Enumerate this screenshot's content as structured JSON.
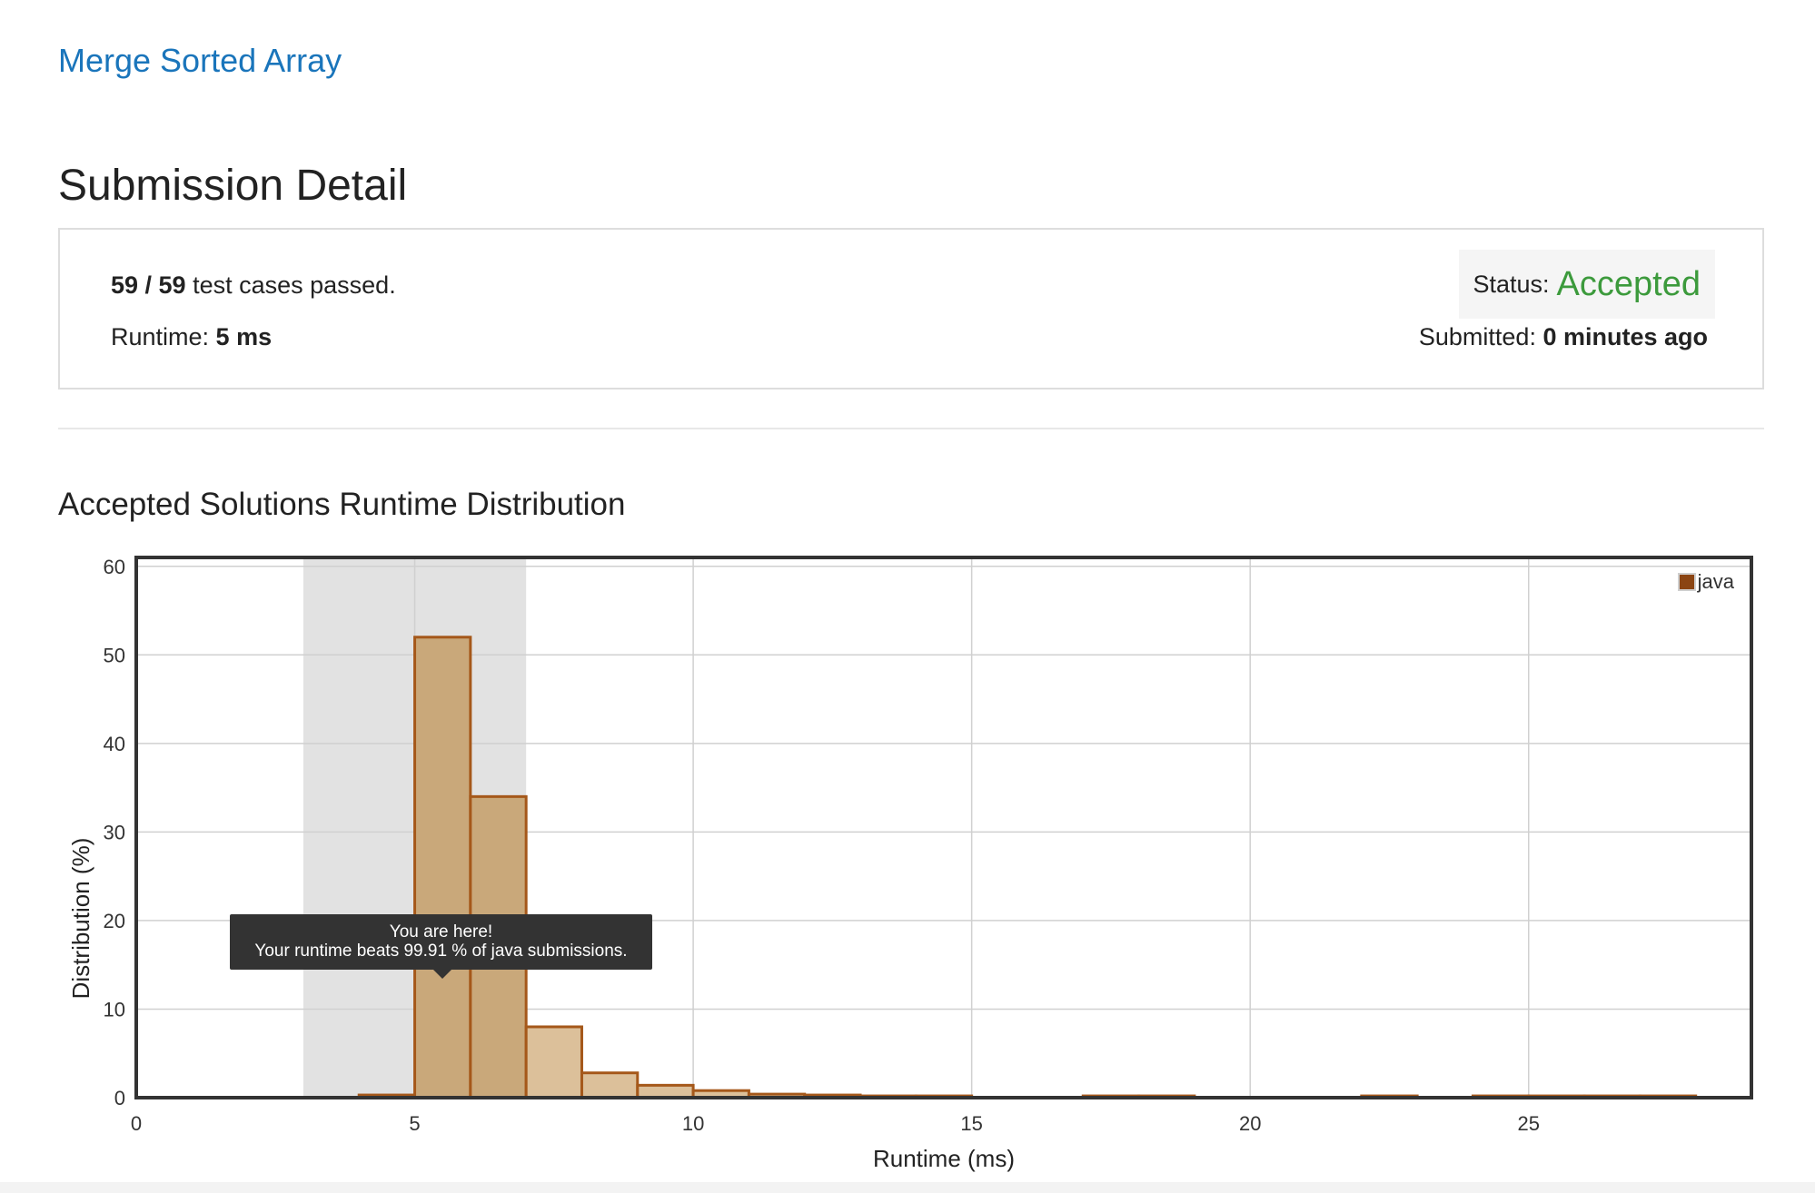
{
  "problem_link": "Merge Sorted Array",
  "page_title": "Submission Detail",
  "summary": {
    "cases_passed": "59 / 59",
    "cases_suffix": " test cases passed.",
    "runtime_label": "Runtime: ",
    "runtime_value": "5 ms",
    "status_label": "Status: ",
    "status_value": "Accepted",
    "submitted_label": "Submitted: ",
    "submitted_value": "0 minutes ago"
  },
  "chart_title": "Accepted Solutions Runtime Distribution",
  "tooltip": {
    "line1": "You are here!",
    "line2": "Your runtime beats 99.91 % of java submissions."
  },
  "colors": {
    "bar_fill": "#c9a87a",
    "bar_fill_light": "#dcc09a",
    "bar_stroke": "#a5581a",
    "highlight": "#e2e2e2",
    "legend_swatch": "#8b4513",
    "status_green": "#3c9a3c",
    "link_blue": "#1a75bb"
  },
  "chart_data": {
    "type": "bar",
    "xlabel": "Runtime (ms)",
    "ylabel": "Distribution (%)",
    "xlim": [
      0,
      29
    ],
    "ylim": [
      0,
      61
    ],
    "xticks": [
      0,
      5,
      10,
      15,
      20,
      25
    ],
    "yticks": [
      0,
      10,
      20,
      30,
      40,
      50,
      60
    ],
    "grid": true,
    "legend_position": "top-right",
    "highlight_range": [
      3,
      7
    ],
    "series": [
      {
        "name": "java",
        "bars": [
          {
            "x0": 4,
            "x1": 5,
            "y": 0.3
          },
          {
            "x0": 5,
            "x1": 6,
            "y": 52
          },
          {
            "x0": 6,
            "x1": 7,
            "y": 34
          },
          {
            "x0": 7,
            "x1": 8,
            "y": 8
          },
          {
            "x0": 8,
            "x1": 9,
            "y": 2.8
          },
          {
            "x0": 9,
            "x1": 10,
            "y": 1.4
          },
          {
            "x0": 10,
            "x1": 11,
            "y": 0.8
          },
          {
            "x0": 11,
            "x1": 12,
            "y": 0.4
          },
          {
            "x0": 12,
            "x1": 13,
            "y": 0.3
          },
          {
            "x0": 13,
            "x1": 14,
            "y": 0.2
          },
          {
            "x0": 14,
            "x1": 15,
            "y": 0.2
          },
          {
            "x0": 17,
            "x1": 18,
            "y": 0.2
          },
          {
            "x0": 18,
            "x1": 19,
            "y": 0.2
          },
          {
            "x0": 22,
            "x1": 23,
            "y": 0.2
          },
          {
            "x0": 24,
            "x1": 25,
            "y": 0.2
          },
          {
            "x0": 25,
            "x1": 26,
            "y": 0.2
          },
          {
            "x0": 26,
            "x1": 27,
            "y": 0.2
          },
          {
            "x0": 27,
            "x1": 28,
            "y": 0.2
          }
        ]
      }
    ]
  }
}
